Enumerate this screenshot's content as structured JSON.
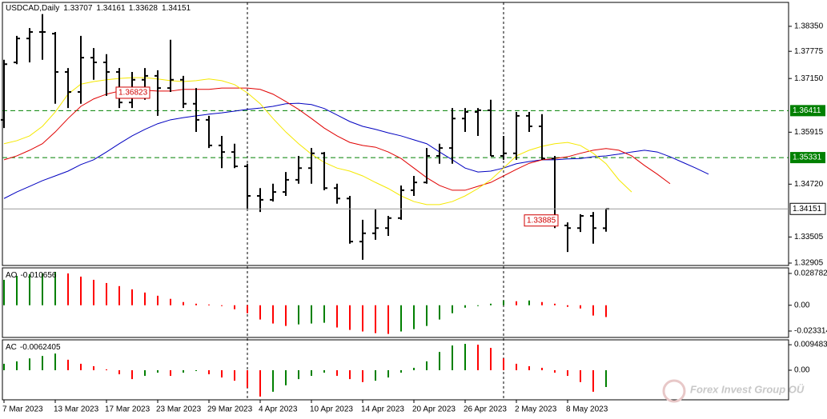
{
  "chart_data": [
    {
      "type": "ohlc",
      "title": "USDCAD,Daily",
      "categories": [
        "7 Mar 2023",
        null,
        null,
        null,
        "13 Mar 2023",
        null,
        null,
        null,
        "17 Mar 2023",
        null,
        null,
        null,
        "23 Mar 2023",
        null,
        null,
        null,
        "29 Mar 2023",
        null,
        null,
        null,
        "4 Apr 2023",
        null,
        null,
        null,
        "10 Apr 2023",
        null,
        null,
        null,
        "14 Apr 2023",
        null,
        null,
        null,
        "20 Apr 2023",
        null,
        null,
        null,
        "26 Apr 2023",
        null,
        null,
        null,
        "2 May 2023",
        null,
        null,
        null,
        "8 May 2023",
        null,
        null,
        null,
        null,
        null,
        null,
        null,
        null,
        null,
        null,
        null
      ],
      "open": [
        1.362,
        1.3752,
        1.3807,
        1.3822,
        1.3818,
        1.373,
        1.3684,
        1.3763,
        1.3752,
        1.373,
        1.366,
        1.3712,
        1.3721,
        1.3693,
        1.3712,
        1.3657,
        1.362,
        1.3561,
        1.3546,
        1.3513,
        1.3445,
        1.3436,
        1.3454,
        1.3482,
        1.3509,
        1.3543,
        1.3463,
        1.3439,
        1.334,
        1.3359,
        1.3371,
        1.3394,
        1.3458,
        1.3476,
        1.3537,
        1.3555,
        1.3623,
        1.3638,
        1.3642,
        1.3537,
        1.3543,
        1.3629,
        1.3605,
        1.3531,
        1.3377,
        1.3371,
        1.3399,
        1.33707,
        null,
        null,
        null,
        null,
        null,
        null,
        null,
        null
      ],
      "high": [
        1.3758,
        1.3813,
        1.3831,
        1.3863,
        1.3822,
        1.3739,
        1.3813,
        1.3785,
        1.3771,
        1.3739,
        1.373,
        1.3739,
        1.3734,
        1.3804,
        1.3721,
        1.3693,
        1.3629,
        1.3583,
        1.3565,
        1.3519,
        1.3463,
        1.3473,
        1.35,
        1.3537,
        1.3555,
        1.3546,
        1.3473,
        1.3445,
        1.339,
        1.3414,
        1.3399,
        1.3469,
        1.3491,
        1.3555,
        1.3565,
        1.3647,
        1.3647,
        1.3647,
        1.3666,
        1.3583,
        1.3638,
        1.3638,
        1.3633,
        1.3537,
        1.3384,
        1.3403,
        1.3408,
        1.34161,
        null,
        null,
        null,
        null,
        null,
        null,
        null,
        null
      ],
      "low": [
        1.3601,
        1.3748,
        1.3752,
        1.3758,
        1.3657,
        1.3647,
        1.3657,
        1.3712,
        1.3675,
        1.3647,
        1.3647,
        1.3666,
        1.3629,
        1.3684,
        1.3647,
        1.3592,
        1.3555,
        1.3509,
        1.3509,
        1.3414,
        1.3408,
        1.3432,
        1.3445,
        1.3473,
        1.3473,
        1.3458,
        1.3427,
        1.3335,
        1.3298,
        1.3344,
        1.3353,
        1.339,
        1.3445,
        1.3473,
        1.3519,
        1.3519,
        1.3592,
        1.3583,
        1.3537,
        1.3528,
        1.3528,
        1.3592,
        1.3528,
        1.3371,
        1.3316,
        1.3362,
        1.3335,
        1.33628,
        null,
        null,
        null,
        null,
        null,
        null,
        null,
        null
      ],
      "close": [
        1.3748,
        1.3807,
        1.3822,
        1.3822,
        1.373,
        1.3684,
        1.3763,
        1.3752,
        1.373,
        1.366,
        1.3712,
        1.3721,
        1.3693,
        1.3712,
        1.3657,
        1.362,
        1.3561,
        1.3546,
        1.3513,
        1.3445,
        1.3436,
        1.3454,
        1.3482,
        1.3509,
        1.3543,
        1.3463,
        1.3439,
        1.334,
        1.3359,
        1.3371,
        1.3394,
        1.3458,
        1.3476,
        1.3537,
        1.3555,
        1.3623,
        1.3638,
        1.3642,
        1.3537,
        1.3543,
        1.3629,
        1.3605,
        1.3531,
        1.3377,
        1.3371,
        1.3399,
        1.3371,
        1.34151,
        null,
        null,
        null,
        null,
        null,
        null,
        null,
        null
      ],
      "color": "#000000",
      "lines": [
        {
          "color": "#0000c0",
          "values": [
            1.3439,
            1.3454,
            1.3467,
            1.348,
            1.3491,
            1.3502,
            1.3517,
            1.3528,
            1.3546,
            1.3565,
            1.3583,
            1.3598,
            1.3611,
            1.362,
            1.3625,
            1.3629,
            1.3633,
            1.3636,
            1.364,
            1.3644,
            1.3647,
            1.3651,
            1.3657,
            1.3658,
            1.3655,
            1.3646,
            1.3631,
            1.3616,
            1.3605,
            1.3598,
            1.359,
            1.3583,
            1.3574,
            1.3565,
            1.3546,
            1.3528,
            1.3509,
            1.35,
            1.3502,
            1.3509,
            1.3519,
            1.3524,
            1.3528,
            1.3528,
            1.353,
            1.3531,
            1.3535,
            1.3537,
            1.3541,
            1.3546,
            1.355,
            1.3546,
            1.3535,
            1.3522,
            1.3509,
            1.3495
          ]
        },
        {
          "color": "#e00000",
          "values": [
            1.3528,
            1.3537,
            1.355,
            1.3565,
            1.3592,
            1.3623,
            1.3651,
            1.3668,
            1.3679,
            1.3686,
            1.369,
            1.3688,
            1.3686,
            1.3686,
            1.369,
            1.369,
            1.369,
            1.3693,
            1.3693,
            1.3693,
            1.369,
            1.3679,
            1.3662,
            1.3644,
            1.3623,
            1.3601,
            1.3583,
            1.3568,
            1.3561,
            1.3557,
            1.3546,
            1.3531,
            1.3509,
            1.3487,
            1.3469,
            1.3458,
            1.3458,
            1.3467,
            1.3476,
            1.3491,
            1.3506,
            1.352,
            1.3528,
            1.3531,
            1.3535,
            1.3543,
            1.355,
            1.3554,
            1.355,
            1.3537,
            1.3515,
            1.3495,
            1.3473,
            null,
            null,
            null
          ]
        },
        {
          "color": "#f5e800",
          "values": [
            1.3565,
            1.3572,
            1.3583,
            1.3605,
            1.3638,
            1.3679,
            1.3702,
            1.3708,
            1.3712,
            1.3715,
            1.3717,
            1.3717,
            1.3714,
            1.371,
            1.3708,
            1.371,
            1.3714,
            1.371,
            1.3701,
            1.3682,
            1.3657,
            1.3623,
            1.3592,
            1.3565,
            1.3541,
            1.3522,
            1.3509,
            1.3502,
            1.3491,
            1.3476,
            1.3462,
            1.3445,
            1.3432,
            1.3425,
            1.3425,
            1.3432,
            1.3445,
            1.3462,
            1.3482,
            1.3509,
            1.3537,
            1.355,
            1.3559,
            1.3565,
            1.3568,
            1.3561,
            1.3543,
            1.3519,
            1.3482,
            1.3454,
            null,
            null,
            null,
            null,
            null,
            null
          ]
        }
      ],
      "levels": [
        {
          "value": 1.36411,
          "color": "#008000"
        },
        {
          "value": 1.35331,
          "color": "#008000"
        }
      ],
      "annotations": [
        {
          "value": 1.36823,
          "color": "#d00000"
        },
        {
          "value": 1.33885,
          "color": "#d00000"
        }
      ],
      "ylim": [
        1.3285,
        1.389
      ],
      "yticks": [
        {
          "value": 1.3835,
          "label": "1.38350"
        },
        1.37775,
        {
          "value": 1.3715,
          "label": "1.37150"
        },
        1.35915,
        {
          "value": 1.3472,
          "label": "1.34720"
        },
        1.33505,
        1.32905
      ]
    },
    {
      "type": "histogram",
      "title": "AO",
      "up_color": "#008000",
      "down_color": "#ff0000",
      "values": [
        0.023,
        0.0266,
        0.028,
        0.0288,
        0.0302,
        0.0288,
        0.0259,
        0.023,
        0.0201,
        0.0173,
        0.0144,
        0.0115,
        0.0086,
        0.0058,
        0.0029,
        0.0014,
        0.0007,
        -0.0007,
        -0.0036,
        -0.0072,
        -0.0129,
        -0.0165,
        -0.0187,
        -0.0173,
        -0.0165,
        -0.0158,
        -0.0201,
        -0.0223,
        -0.0237,
        -0.0252,
        -0.0259,
        -0.0237,
        -0.0216,
        -0.0187,
        -0.0129,
        -0.0072,
        -0.0022,
        -0.0007,
        0.0014,
        0.0043,
        0.0036,
        0.0043,
        0.0029,
        0.0014,
        -0.0014,
        -0.0029,
        -0.0093,
        -0.010656,
        null,
        null,
        null,
        null,
        null,
        null,
        null,
        null
      ],
      "ylim": [
        -0.0291,
        0.0338
      ],
      "yticks": [
        0.028782,
        {
          "value": 0,
          "label": "0.00"
        },
        -0.023314
      ]
    },
    {
      "type": "histogram",
      "title": "AC",
      "up_color": "#008000",
      "down_color": "#ff0000",
      "values": [
        0.0024,
        0.0033,
        0.0044,
        0.0053,
        0.0062,
        0.0039,
        0.0024,
        0.0015,
        0.0003,
        -0.0015,
        -0.0033,
        -0.0021,
        -0.0009,
        -0.0021,
        -0.0009,
        -0.0003,
        -0.0015,
        -0.0027,
        -0.0039,
        -0.0065,
        -0.0098,
        -0.008,
        -0.0056,
        -0.0033,
        -0.0021,
        -0.0009,
        -0.0021,
        -0.0033,
        -0.0044,
        -0.0039,
        -0.0027,
        -0.0009,
        0.0009,
        0.0033,
        0.0068,
        0.0092,
        0.0098,
        0.0095,
        0.0083,
        0.0044,
        0.0024,
        0.0015,
        0.0009,
        -0.0009,
        -0.0021,
        -0.0044,
        -0.008,
        -0.0062405,
        null,
        null,
        null,
        null,
        null,
        null,
        null,
        null
      ],
      "ylim": [
        -0.011,
        0.0113
      ],
      "yticks": [
        0.0094836,
        {
          "value": 0,
          "label": "0.00"
        }
      ]
    }
  ],
  "watermark": "Forex Invest Group OÜ"
}
